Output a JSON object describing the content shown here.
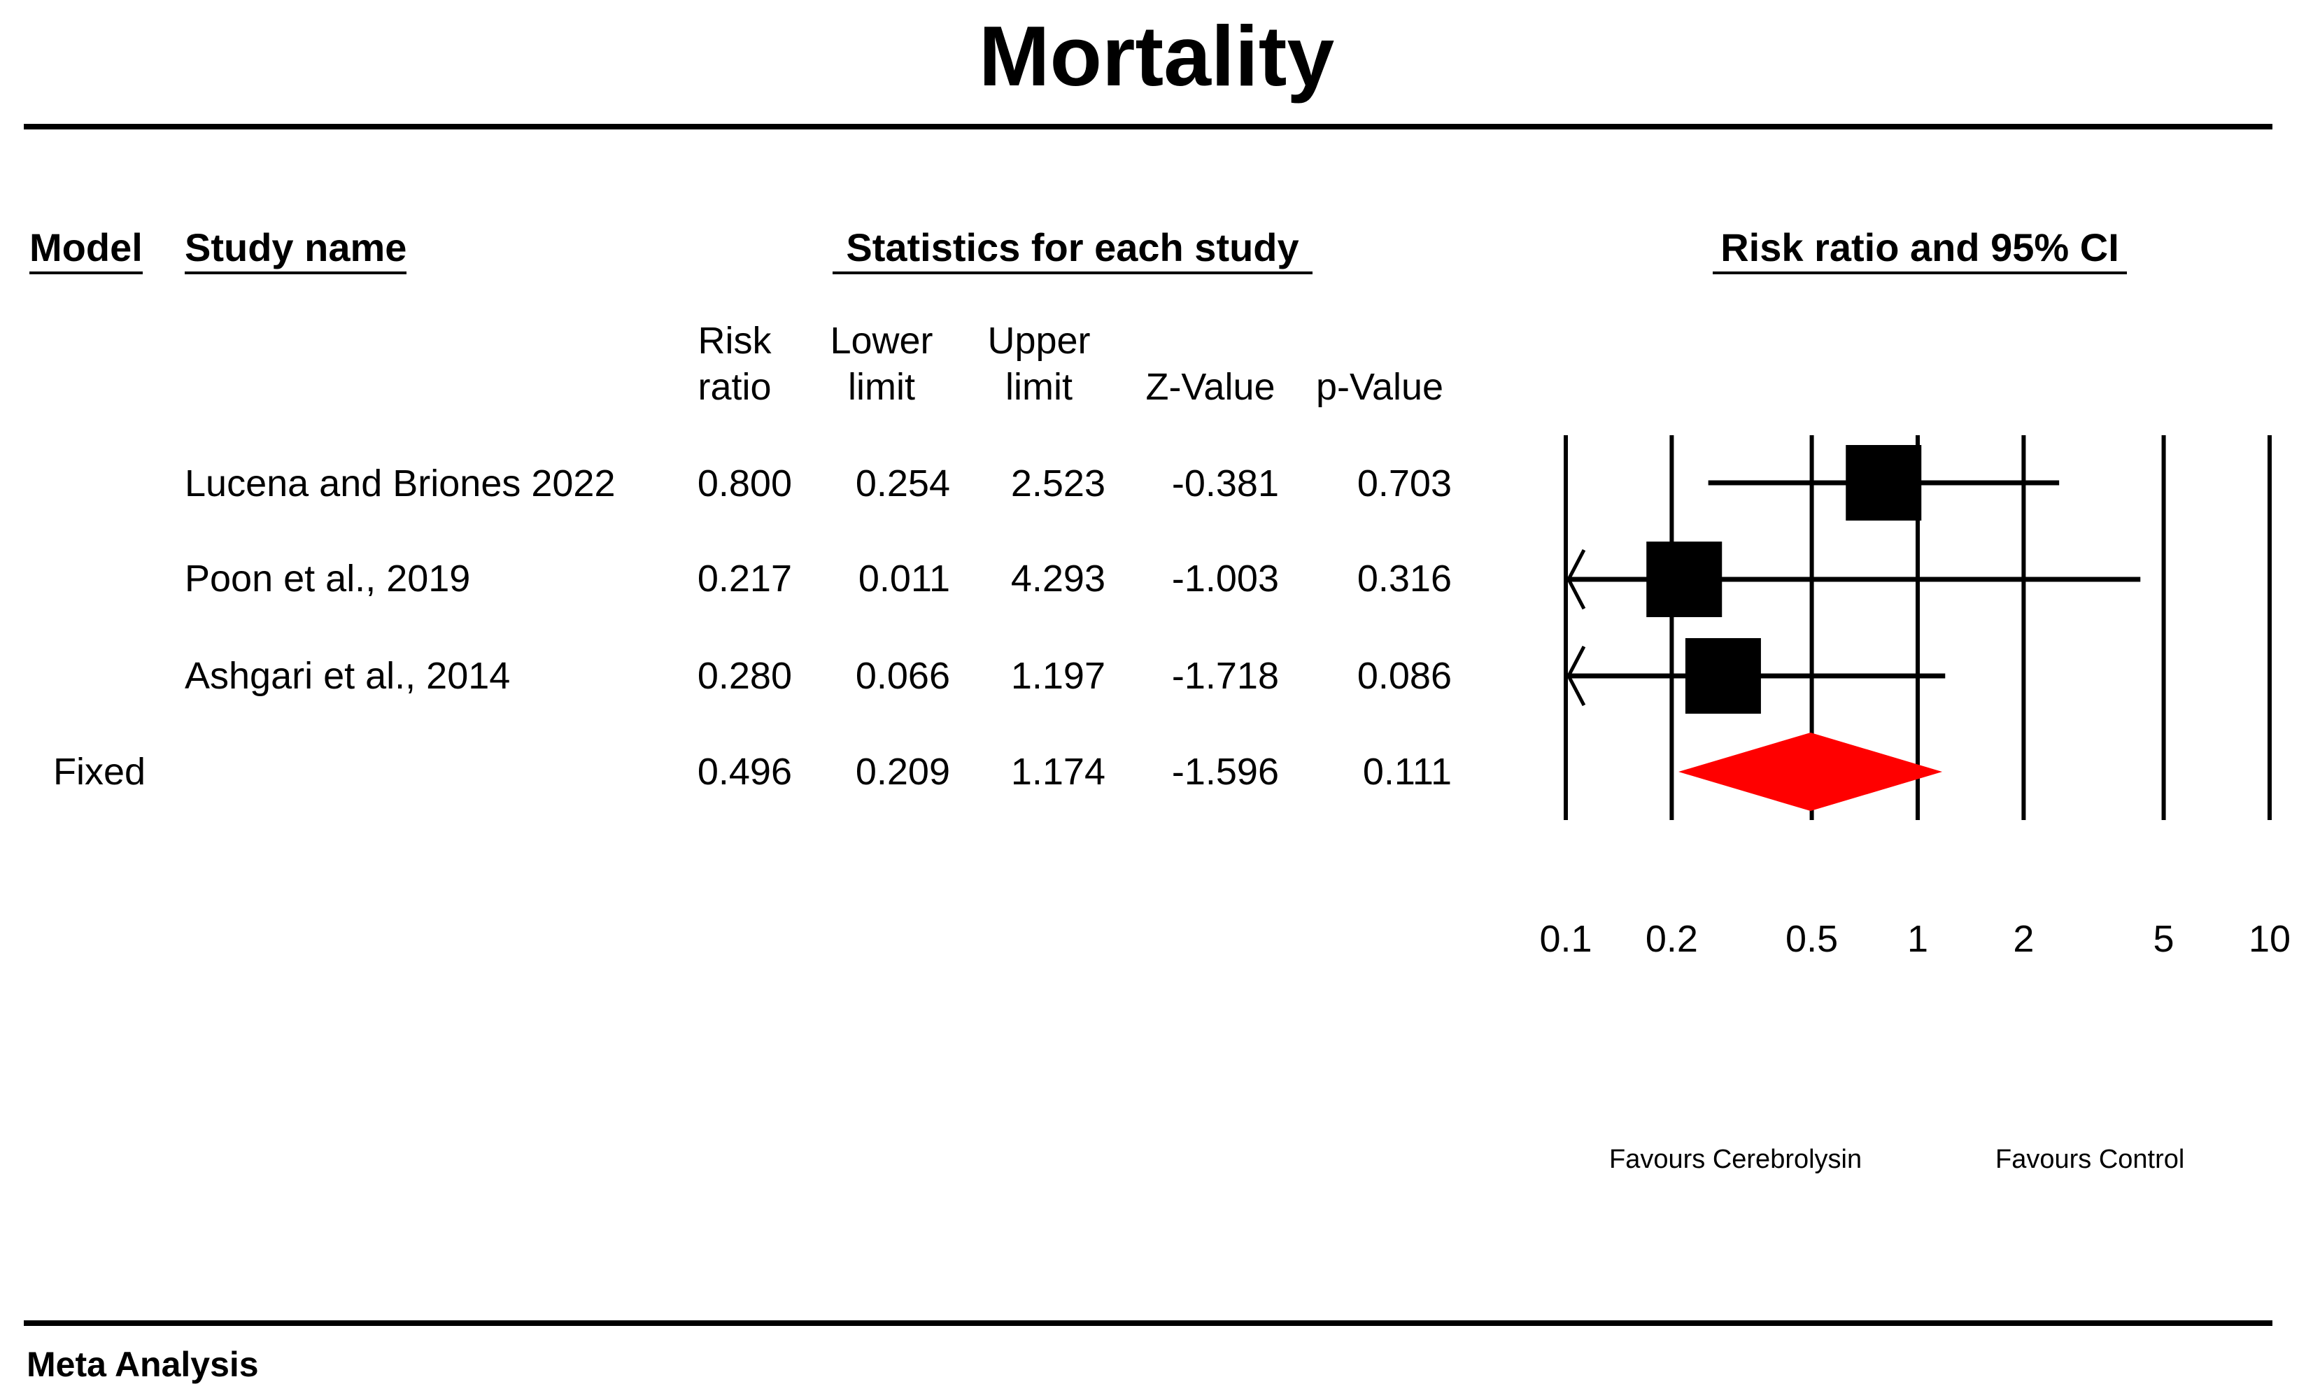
{
  "title": "Mortality",
  "headers": {
    "model": "Model",
    "study_name": "Study name",
    "statistics": "Statistics for each study",
    "ci_header": "Risk ratio and 95% CI"
  },
  "columns": {
    "risk_ratio": [
      "Risk",
      "ratio"
    ],
    "lower_limit": [
      "Lower",
      "limit"
    ],
    "upper_limit": [
      "Upper",
      "limit"
    ],
    "z_value": "Z-Value",
    "p_value": "p-Value"
  },
  "rows": [
    {
      "model": "",
      "study": "Lucena and Briones 2022",
      "risk_ratio": "0.800",
      "lower": "0.254",
      "upper": "2.523",
      "z": "-0.381",
      "p": "0.703"
    },
    {
      "model": "",
      "study": "Poon et al., 2019",
      "risk_ratio": "0.217",
      "lower": "0.011",
      "upper": "4.293",
      "z": "-1.003",
      "p": "0.316"
    },
    {
      "model": "",
      "study": "Ashgari et al., 2014",
      "risk_ratio": "0.280",
      "lower": "0.066",
      "upper": "1.197",
      "z": "-1.718",
      "p": "0.086"
    },
    {
      "model": "Fixed",
      "study": "",
      "risk_ratio": "0.496",
      "lower": "0.209",
      "upper": "1.174",
      "z": "-1.596",
      "p": "0.111"
    }
  ],
  "axis_ticks": [
    "0.1",
    "0.2",
    "0.5",
    "1",
    "2",
    "5",
    "10"
  ],
  "favours_left": "Favours Cerebrolysin",
  "favours_right": "Favours Control",
  "footer": "Meta Analysis",
  "chart_data": {
    "type": "forest",
    "title": "Risk ratio and 95% CI",
    "scale": "log",
    "xlim": [
      0.1,
      10
    ],
    "ticks": [
      0.1,
      0.2,
      0.5,
      1,
      2,
      5,
      10
    ],
    "series": [
      {
        "name": "Lucena and Briones 2022",
        "estimate": 0.8,
        "lower": 0.254,
        "upper": 2.523,
        "marker": "square"
      },
      {
        "name": "Poon et al., 2019",
        "estimate": 0.217,
        "lower": 0.011,
        "upper": 4.293,
        "marker": "square"
      },
      {
        "name": "Ashgari et al., 2014",
        "estimate": 0.28,
        "lower": 0.066,
        "upper": 1.197,
        "marker": "square"
      },
      {
        "name": "Fixed",
        "estimate": 0.496,
        "lower": 0.209,
        "upper": 1.174,
        "marker": "diamond"
      }
    ],
    "colors": {
      "study": "#000000",
      "summary": "#ff0000"
    }
  }
}
